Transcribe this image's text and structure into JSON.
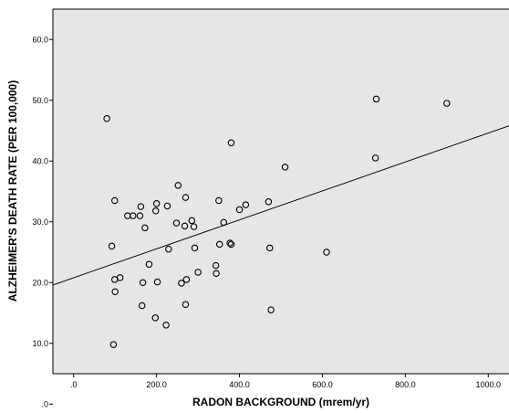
{
  "colors": {
    "plot_background": "#e6e6e6",
    "frame": "#000000",
    "marker_stroke": "#000000",
    "fit_line": "#000000"
  },
  "chart_data": {
    "type": "scatter",
    "title": "",
    "xlabel": "RADON BACKGROUND (mrem/yr)",
    "ylabel": "ALZHEIMER'S DEATH RATE (PER 100,000)",
    "xlim": [
      -50,
      1050
    ],
    "ylim": [
      5,
      65
    ],
    "x_ticks": [
      0,
      200,
      400,
      600,
      800,
      1000
    ],
    "x_tick_labels": [
      ".0",
      "200.0",
      "400.0",
      "600.0",
      "800.0",
      "1000.0"
    ],
    "y_ticks": [
      0,
      10,
      20,
      30,
      40,
      50,
      60
    ],
    "y_tick_labels": [
      ".0",
      "10.0",
      "20.0",
      "30.0",
      "40.0",
      "50.0",
      "60.0"
    ],
    "grid": false,
    "legend": "none",
    "marker": "hollow-circle",
    "fit_line": {
      "x": [
        -50,
        1050
      ],
      "y": [
        19.6,
        45.8
      ]
    },
    "points": [
      {
        "x": 80,
        "y": 47.0
      },
      {
        "x": 92,
        "y": 26.0
      },
      {
        "x": 96,
        "y": 9.8
      },
      {
        "x": 99,
        "y": 33.5
      },
      {
        "x": 99,
        "y": 20.5
      },
      {
        "x": 100,
        "y": 18.5
      },
      {
        "x": 112,
        "y": 20.8
      },
      {
        "x": 130,
        "y": 31.0
      },
      {
        "x": 143,
        "y": 31.0
      },
      {
        "x": 160,
        "y": 31.0
      },
      {
        "x": 162,
        "y": 32.5
      },
      {
        "x": 165,
        "y": 16.2
      },
      {
        "x": 167,
        "y": 20.0
      },
      {
        "x": 172,
        "y": 29.0
      },
      {
        "x": 182,
        "y": 23.0
      },
      {
        "x": 198,
        "y": 31.8
      },
      {
        "x": 200,
        "y": 33.0
      },
      {
        "x": 197,
        "y": 14.2
      },
      {
        "x": 202,
        "y": 20.1
      },
      {
        "x": 223,
        "y": 13.0
      },
      {
        "x": 226,
        "y": 32.6
      },
      {
        "x": 229,
        "y": 25.5
      },
      {
        "x": 248,
        "y": 29.8
      },
      {
        "x": 252,
        "y": 36.0
      },
      {
        "x": 260,
        "y": 19.9
      },
      {
        "x": 268,
        "y": 29.3
      },
      {
        "x": 270,
        "y": 34.0
      },
      {
        "x": 270,
        "y": 16.4
      },
      {
        "x": 272,
        "y": 20.5
      },
      {
        "x": 285,
        "y": 30.2
      },
      {
        "x": 290,
        "y": 29.2
      },
      {
        "x": 292,
        "y": 25.7
      },
      {
        "x": 300,
        "y": 21.7
      },
      {
        "x": 343,
        "y": 22.8
      },
      {
        "x": 344,
        "y": 21.5
      },
      {
        "x": 350,
        "y": 33.5
      },
      {
        "x": 352,
        "y": 26.3
      },
      {
        "x": 362,
        "y": 29.9
      },
      {
        "x": 377,
        "y": 26.5
      },
      {
        "x": 380,
        "y": 26.3
      },
      {
        "x": 380,
        "y": 43.0
      },
      {
        "x": 400,
        "y": 32.0
      },
      {
        "x": 415,
        "y": 32.8
      },
      {
        "x": 470,
        "y": 33.3
      },
      {
        "x": 473,
        "y": 25.7
      },
      {
        "x": 476,
        "y": 15.5
      },
      {
        "x": 510,
        "y": 39.0
      },
      {
        "x": 610,
        "y": 25.0
      },
      {
        "x": 728,
        "y": 40.5
      },
      {
        "x": 730,
        "y": 50.2
      },
      {
        "x": 900,
        "y": 49.5
      }
    ]
  }
}
